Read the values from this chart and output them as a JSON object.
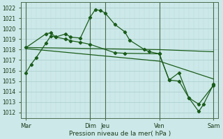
{
  "background_color": "#cce8e8",
  "grid_color_major": "#aacccc",
  "grid_color_minor": "#bbdddd",
  "line_color": "#1a5c1a",
  "ylim": [
    1011.5,
    1022.5
  ],
  "yticks": [
    1012,
    1013,
    1014,
    1015,
    1016,
    1017,
    1018,
    1019,
    1020,
    1021,
    1022
  ],
  "xlabel": "Pression niveau de la mer( hPa )",
  "xlim": [
    0,
    20
  ],
  "xtick_labels_text": [
    "Mar",
    "Dim",
    "Jeu",
    "Ven",
    "Sam"
  ],
  "xtick_positions_named": [
    0.5,
    7,
    8.5,
    14,
    19.5
  ],
  "vline_positions": [
    0.5,
    7.0,
    8.5,
    14.0,
    19.5
  ],
  "series_main": {
    "x": [
      0.5,
      1.0,
      1.5,
      2.5,
      3.0,
      3.5,
      4.5,
      5.0,
      6.0,
      7.0,
      7.5,
      8.0,
      8.5,
      9.5,
      10.5,
      11.0,
      12.5,
      13.0,
      14.0,
      15.0,
      16.0,
      17.0,
      18.0,
      18.5,
      19.5
    ],
    "y": [
      1015.8,
      1016.6,
      1017.2,
      1018.6,
      1019.3,
      1019.2,
      1019.5,
      1019.2,
      1019.1,
      1021.1,
      1021.8,
      1021.75,
      1021.5,
      1020.4,
      1019.7,
      1018.9,
      1018.0,
      1017.8,
      1017.6,
      1015.1,
      1015.0,
      1013.4,
      1012.1,
      1012.8,
      1014.7
    ]
  },
  "series_flat1": {
    "x": [
      0.5,
      14.0,
      19.5
    ],
    "y": [
      1018.2,
      1018.0,
      1017.8
    ]
  },
  "series_flat2": {
    "x": [
      0.5,
      14.0,
      19.5
    ],
    "y": [
      1018.1,
      1016.9,
      1015.2
    ]
  },
  "series_second": {
    "x": [
      0.5,
      2.5,
      3.0,
      3.5,
      4.5,
      5.0,
      6.0,
      7.0,
      9.5,
      10.5,
      14.0,
      15.0,
      16.0,
      17.0,
      18.0,
      19.5
    ],
    "y": [
      1018.2,
      1019.5,
      1019.6,
      1019.2,
      1019.0,
      1018.85,
      1018.7,
      1018.5,
      1017.7,
      1017.65,
      1017.6,
      1015.1,
      1015.8,
      1013.4,
      1012.8,
      1014.6
    ]
  }
}
